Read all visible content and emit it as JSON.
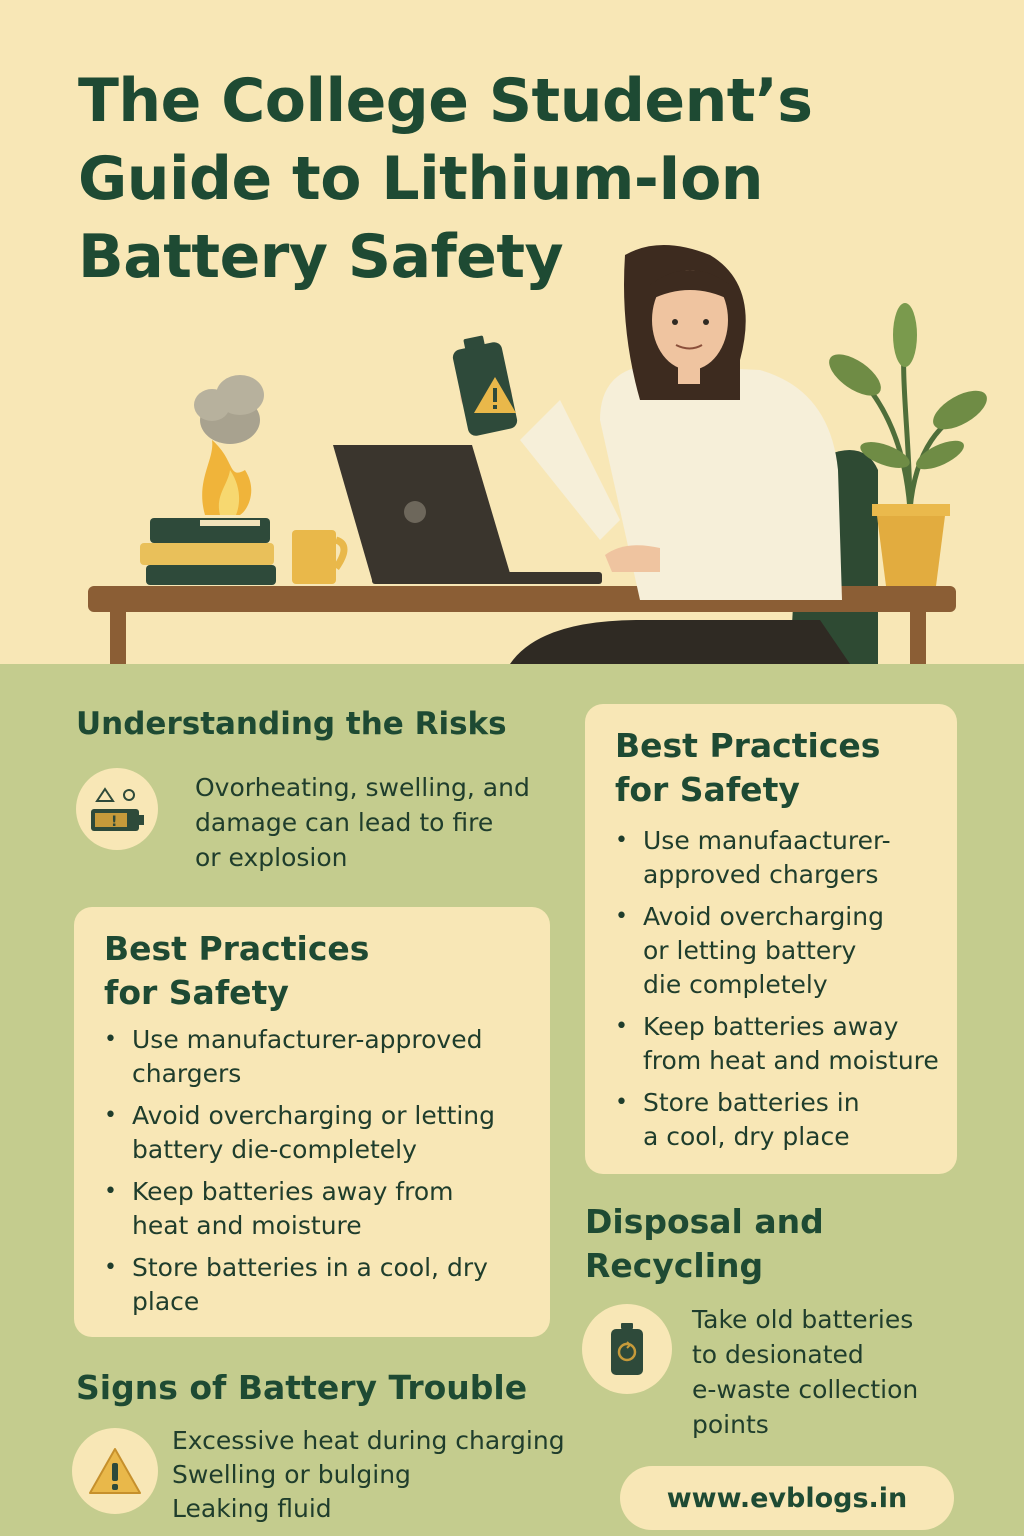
{
  "header": {
    "title_lines": [
      "The College Student’s",
      "Guide to Lithium-Ion",
      "Battery Safety"
    ]
  },
  "risks": {
    "heading": "Understanding the Risks",
    "icon": "battery-warning-icon",
    "text_lines": [
      "Ovorheating, swelling, and",
      "damage can lead to fire",
      "or explosion"
    ]
  },
  "practices_left": {
    "heading_lines": [
      "Best Practices",
      "for Safety"
    ],
    "items": [
      [
        "Use manufacturer-approved",
        "chargers"
      ],
      [
        "Avoid overcharging or letting",
        "battery die-completely"
      ],
      [
        "Keep batteries away from",
        "heat and moisture"
      ],
      [
        "Store batteries in a cool, dry",
        "place"
      ]
    ]
  },
  "practices_right": {
    "heading_lines": [
      "Best Practices",
      "for Safety"
    ],
    "items": [
      [
        "Use manufaacturer-",
        "approved chargers"
      ],
      [
        "Avoid overcharging",
        "or letting battery",
        "die completely"
      ],
      [
        "Keep batteries away",
        "from heat and moisture"
      ],
      [
        "Store batteries in",
        "a cool, dry place"
      ]
    ]
  },
  "trouble": {
    "heading": "Signs of Battery Trouble",
    "icon": "warning-triangle-icon",
    "text_lines": [
      "Excessive heat during charging",
      "Swelling or bulging",
      "Leaking fluid"
    ]
  },
  "disposal": {
    "heading_lines": [
      "Disposal and",
      "Recycling"
    ],
    "icon": "recycle-battery-icon",
    "text_lines": [
      "Take old batteries",
      "to desionated",
      "e-waste collection",
      "points"
    ]
  },
  "footer": {
    "url": "www.evblogs.in"
  },
  "colors": {
    "cream": "#f8e7b6",
    "green_bg": "#c4cc8e",
    "dark_green": "#1e4a33",
    "warning_yellow": "#e9b84a"
  }
}
